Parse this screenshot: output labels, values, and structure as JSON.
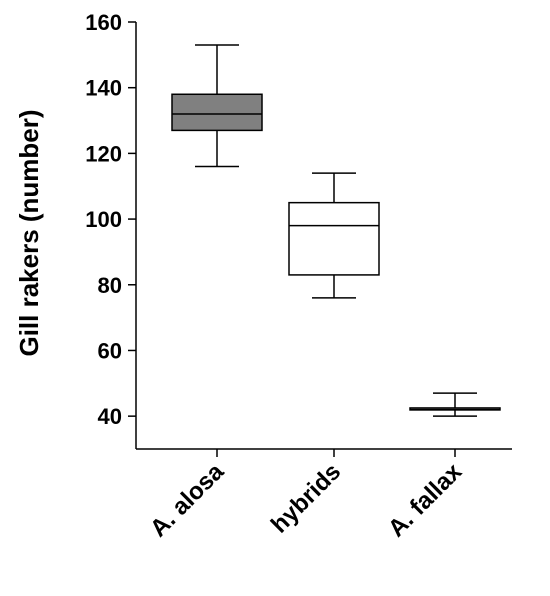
{
  "chart_data": {
    "type": "box",
    "title": "",
    "xlabel": "",
    "ylabel": "Gill rakers (number)",
    "ylim": [
      30,
      160
    ],
    "yticks": [
      40,
      60,
      80,
      100,
      120,
      140,
      160
    ],
    "categories": [
      "A. alosa",
      "hybrids",
      "A. fallax"
    ],
    "boxes": [
      {
        "category": "A. alosa",
        "min": 116,
        "q1": 127,
        "median": 132,
        "q3": 138,
        "max": 153,
        "fill": "#808080"
      },
      {
        "category": "hybrids",
        "min": 76,
        "q1": 83,
        "median": 98,
        "q3": 105,
        "max": 114,
        "fill": "#ffffff"
      },
      {
        "category": "A. fallax",
        "min": 40,
        "q1": 42,
        "median": 42,
        "q3": 42.5,
        "max": 47,
        "fill": "#808080"
      }
    ],
    "grid": false,
    "legend": "none"
  }
}
